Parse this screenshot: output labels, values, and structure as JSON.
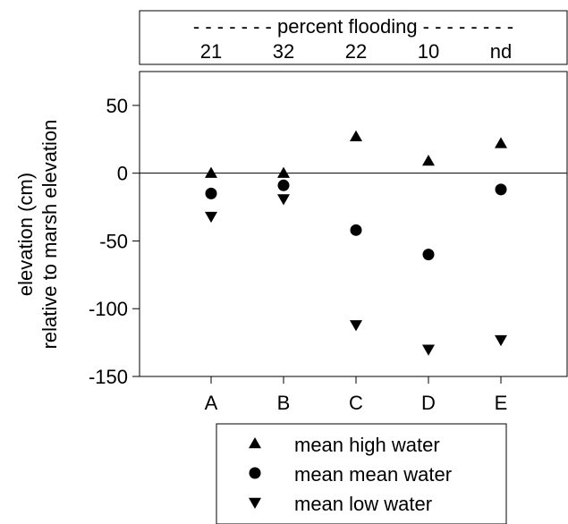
{
  "chart_data": {
    "type": "scatter",
    "ylabel_lines": [
      "elevation (cm)",
      "relative to marsh elevation"
    ],
    "categories": [
      "A",
      "B",
      "C",
      "D",
      "E"
    ],
    "ylim": [
      -150,
      75
    ],
    "yticks": [
      50,
      0,
      -50,
      -100,
      -150
    ],
    "yticklabels": [
      "50",
      "0",
      "-50",
      "-100",
      "-150"
    ],
    "zero_line": true,
    "top_panel": {
      "title": "- - - - - - - percent flooding - - - - - - - -",
      "values": [
        "21",
        "32",
        "22",
        "10",
        "nd"
      ]
    },
    "series": [
      {
        "name": "mean high water",
        "marker": "triangle-up",
        "values": [
          0,
          0,
          27,
          9,
          22
        ]
      },
      {
        "name": "mean mean water",
        "marker": "circle",
        "values": [
          -15,
          -9,
          -42,
          -60,
          -12
        ]
      },
      {
        "name": "mean low water",
        "marker": "triangle-down",
        "values": [
          -32,
          -19,
          -112,
          -130,
          -123
        ]
      }
    ],
    "legend": {
      "position": "bottom"
    },
    "color": "#000000"
  }
}
